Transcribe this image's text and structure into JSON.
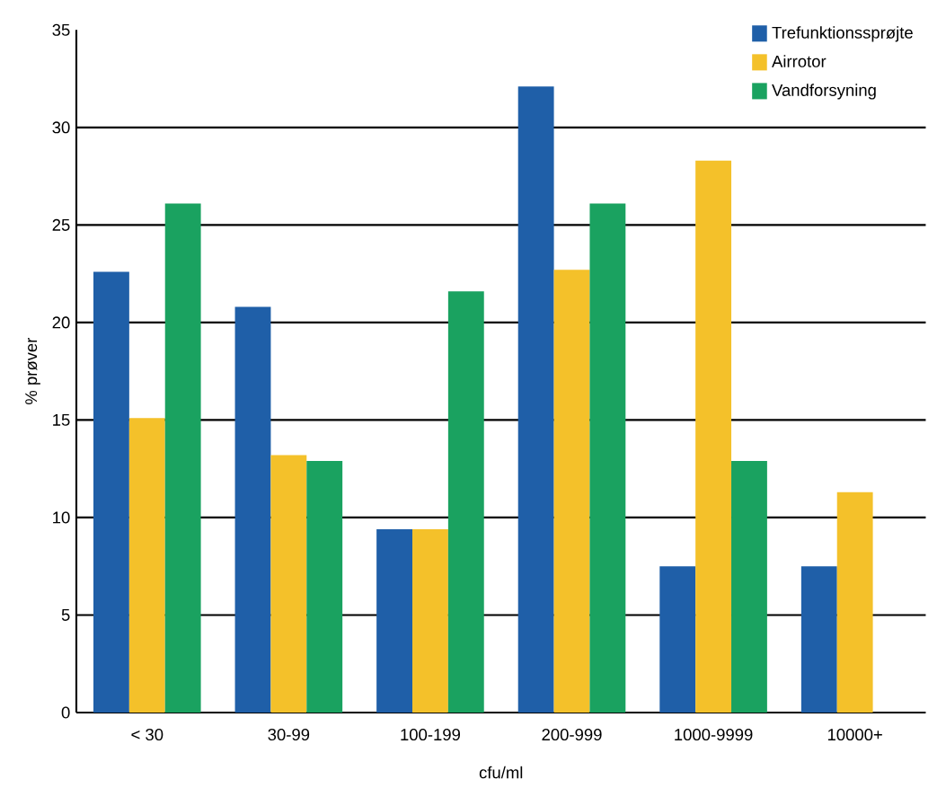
{
  "chart_data": {
    "type": "bar",
    "xlabel": "cfu/ml",
    "ylabel": "% prøver",
    "categories": [
      "< 30",
      "30-99",
      "100-199",
      "200-999",
      "1000-9999",
      "10000+"
    ],
    "series": [
      {
        "name": "Trefunktionssprøjte",
        "color": "#1f5fa8",
        "values": [
          22.6,
          20.8,
          9.4,
          32.1,
          7.5,
          7.5
        ]
      },
      {
        "name": "Airrotor",
        "color": "#f4c12a",
        "values": [
          15.1,
          13.2,
          9.4,
          22.7,
          28.3,
          11.3
        ]
      },
      {
        "name": "Vandforsyning",
        "color": "#1aa260",
        "values": [
          26.1,
          12.9,
          21.6,
          26.1,
          12.9,
          null
        ]
      }
    ],
    "ylim": [
      0,
      35
    ],
    "yticks": [
      0,
      5,
      10,
      15,
      20,
      25,
      30,
      35
    ],
    "grid": "y",
    "legend": "top right"
  }
}
